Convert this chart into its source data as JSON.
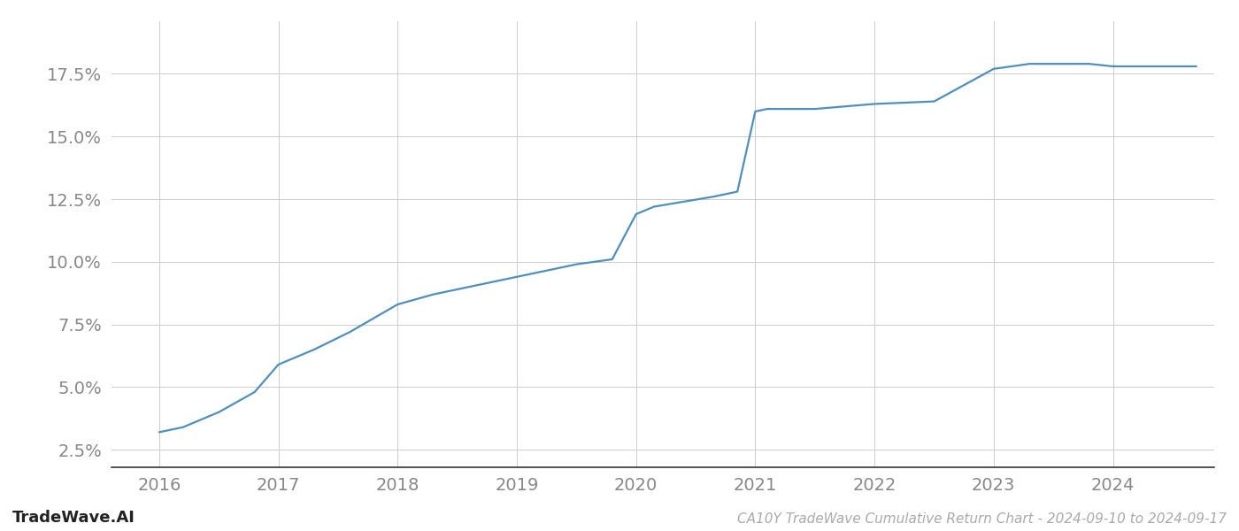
{
  "x_values": [
    2016.0,
    2016.2,
    2016.5,
    2016.8,
    2017.0,
    2017.3,
    2017.6,
    2018.0,
    2018.3,
    2018.6,
    2018.9,
    2019.2,
    2019.5,
    2019.8,
    2020.0,
    2020.15,
    2020.4,
    2020.65,
    2020.85,
    2021.0,
    2021.1,
    2021.25,
    2021.5,
    2022.0,
    2022.5,
    2023.0,
    2023.3,
    2023.5,
    2023.8,
    2024.0,
    2024.3,
    2024.7
  ],
  "y_values": [
    0.032,
    0.034,
    0.04,
    0.048,
    0.059,
    0.065,
    0.072,
    0.083,
    0.087,
    0.09,
    0.093,
    0.096,
    0.099,
    0.101,
    0.119,
    0.122,
    0.124,
    0.126,
    0.128,
    0.16,
    0.161,
    0.161,
    0.161,
    0.163,
    0.164,
    0.177,
    0.179,
    0.179,
    0.179,
    0.178,
    0.178,
    0.178
  ],
  "line_color": "#4f8fbe",
  "line_width": 1.6,
  "background_color": "#ffffff",
  "grid_color": "#cccccc",
  "title": "CA10Y TradeWave Cumulative Return Chart - 2024-09-10 to 2024-09-17",
  "watermark": "TradeWave.AI",
  "x_ticks": [
    2016,
    2017,
    2018,
    2019,
    2020,
    2021,
    2022,
    2023,
    2024
  ],
  "y_ticks": [
    0.025,
    0.05,
    0.075,
    0.1,
    0.125,
    0.15,
    0.175
  ],
  "y_tick_labels": [
    "2.5%",
    "5.0%",
    "7.5%",
    "10.0%",
    "12.5%",
    "15.0%",
    "17.5%"
  ],
  "xlim": [
    2015.6,
    2024.85
  ],
  "ylim": [
    0.018,
    0.196
  ],
  "tick_color": "#888888",
  "tick_fontsize": 14,
  "title_fontsize": 11,
  "watermark_fontsize": 13,
  "spine_color": "#333333"
}
